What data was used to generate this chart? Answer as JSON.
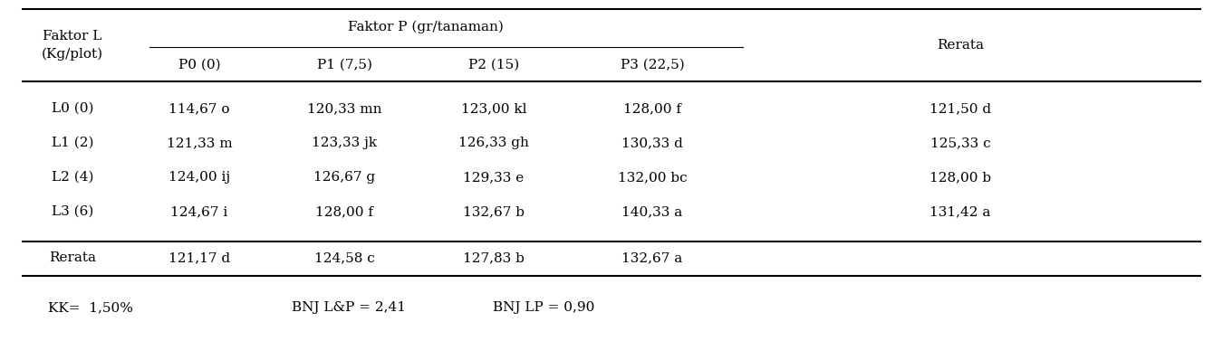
{
  "header_faktor_l": "Faktor L\n(Kg/plot)",
  "header_faktor_p": "Faktor P (gr/tanaman)",
  "header_rerata": "Rerata",
  "sub_headers": [
    "P0 (0)",
    "P1 (7,5)",
    "P2 (15)",
    "P3 (22,5)"
  ],
  "row_labels": [
    "L0 (0)",
    "L1 (2)",
    "L2 (4)",
    "L3 (6)",
    "Rerata"
  ],
  "data": [
    [
      "114,67 o",
      "120,33 mn",
      "123,00 kl",
      "128,00 f",
      "121,50 d"
    ],
    [
      "121,33 m",
      "123,33 jk",
      "126,33 gh",
      "130,33 d",
      "125,33 c"
    ],
    [
      "124,00 ij",
      "126,67 g",
      "129,33 e",
      "132,00 bc",
      "128,00 b"
    ],
    [
      "124,67 i",
      "128,00 f",
      "132,67 b",
      "140,33 a",
      "131,42 a"
    ],
    [
      "121,17 d",
      "124,58 c",
      "127,83 b",
      "132,67 a",
      ""
    ]
  ],
  "footer_kk": "KK=  1,50%",
  "footer_bnj_lp": "BNJ L&P = 2,41",
  "footer_bnj_lp2": "BNJ LP = 0,90",
  "bg_color": "#ffffff",
  "text_color": "#000000",
  "font_size": 11.0,
  "figsize": [
    13.5,
    3.77
  ]
}
